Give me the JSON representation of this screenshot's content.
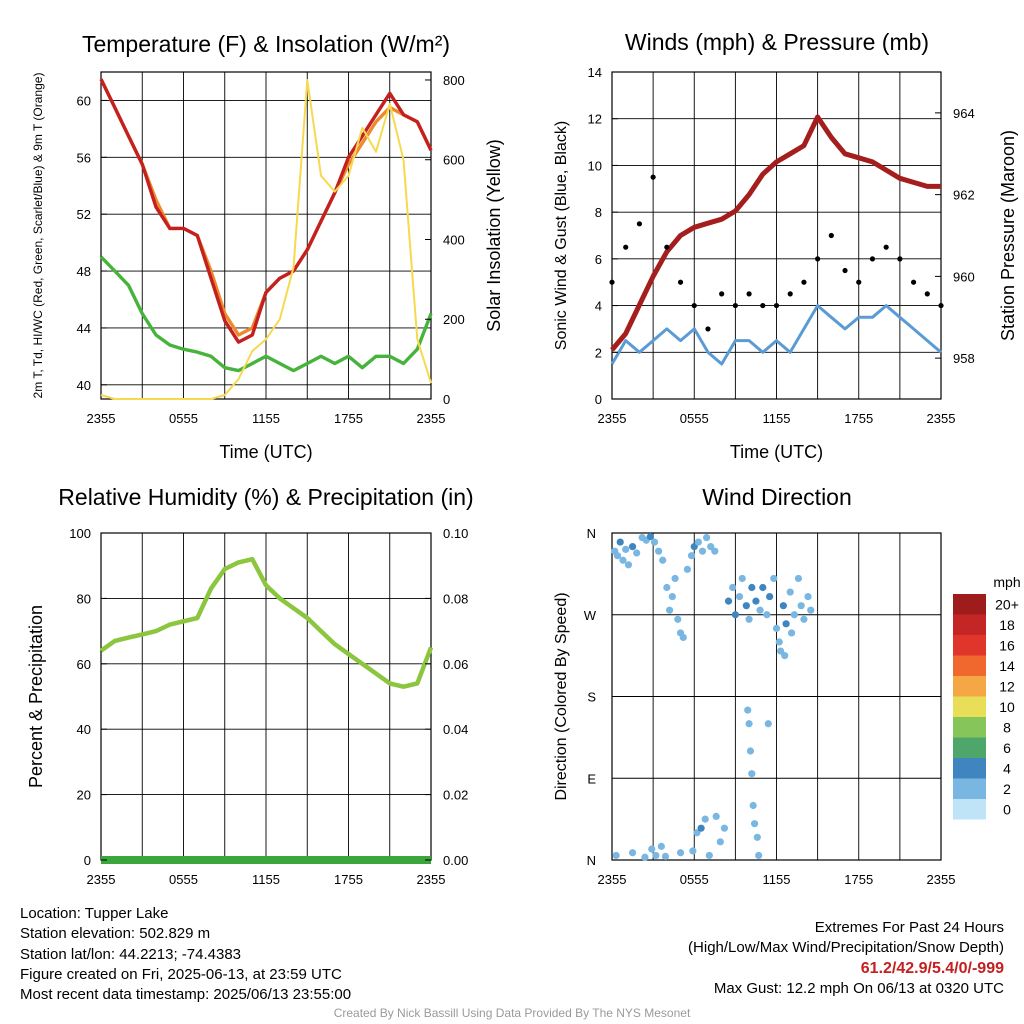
{
  "chart_data": [
    {
      "type": "line",
      "title": "Temperature (F) & Insolation (W/m²)",
      "xlabel": "Time (UTC)",
      "ylabel": "2m T, Td, HI/WC (Red, Green, Scarlet/Blue) & 9m T (Orange)",
      "y2label": "Solar Insolation (Yellow)",
      "x_ticks": [
        "2355",
        "0555",
        "1155",
        "1755",
        "2355"
      ],
      "ylim": [
        39,
        62
      ],
      "y_ticks": [
        40,
        44,
        48,
        52,
        56,
        60
      ],
      "y2lim": [
        0,
        820
      ],
      "y2_ticks": [
        0,
        200,
        400,
        600,
        800
      ],
      "x_hours": [
        0,
        1,
        2,
        3,
        4,
        5,
        6,
        7,
        8,
        9,
        10,
        11,
        12,
        13,
        14,
        15,
        16,
        17,
        18,
        19,
        20,
        21,
        22,
        23,
        24
      ],
      "series": [
        {
          "color": "#ec8a2c",
          "axis": "left",
          "values": [
            61.5,
            59.5,
            57.5,
            55.5,
            53,
            51,
            51,
            50.5,
            48,
            45,
            43.5,
            44,
            46.5,
            47.5,
            48,
            49.5,
            51.5,
            53.5,
            55.5,
            57,
            58.5,
            59.5,
            59,
            58.5,
            56.5
          ]
        },
        {
          "color": "#c4201f",
          "axis": "left",
          "values": [
            61.5,
            59.5,
            57.5,
            55.5,
            52.5,
            51,
            51,
            50.5,
            47.5,
            44.5,
            43,
            43.5,
            46.5,
            47.5,
            48,
            49.5,
            51.5,
            53.5,
            56,
            57.5,
            59,
            60.5,
            59,
            58.5,
            56.5
          ]
        },
        {
          "color": "#46b33b",
          "axis": "left",
          "values": [
            49,
            48,
            47,
            45,
            43.5,
            42.8,
            42.5,
            42.3,
            42,
            41.2,
            41,
            41.5,
            42,
            41.5,
            41,
            41.5,
            42,
            41.5,
            42,
            41.2,
            42,
            42,
            41.5,
            42.5,
            45
          ]
        },
        {
          "color": "#f7d950",
          "axis": "right",
          "values": [
            10,
            0,
            0,
            0,
            0,
            0,
            0,
            0,
            0,
            10,
            50,
            120,
            150,
            200,
            330,
            800,
            560,
            520,
            560,
            680,
            620,
            740,
            600,
            150,
            40
          ]
        }
      ]
    },
    {
      "type": "line",
      "title": "Winds (mph) & Pressure (mb)",
      "xlabel": "Time (UTC)",
      "ylabel": "Sonic Wind & Gust (Blue, Black)",
      "y2label": "Station Pressure (Maroon)",
      "x_ticks": [
        "2355",
        "0555",
        "1155",
        "1755",
        "2355"
      ],
      "ylim": [
        0,
        14
      ],
      "y_ticks": [
        0,
        2,
        4,
        6,
        8,
        10,
        12,
        14
      ],
      "y2lim": [
        957,
        965
      ],
      "y2_ticks": [
        958,
        960,
        962,
        964
      ],
      "x_hours": [
        0,
        1,
        2,
        3,
        4,
        5,
        6,
        7,
        8,
        9,
        10,
        11,
        12,
        13,
        14,
        15,
        16,
        17,
        18,
        19,
        20,
        21,
        22,
        23,
        24
      ],
      "series": [
        {
          "color": "#a51e1e",
          "axis": "right",
          "kind": "line",
          "values": [
            958.2,
            958.6,
            959.3,
            960.0,
            960.6,
            961.0,
            961.2,
            961.3,
            961.4,
            961.6,
            962.0,
            962.5,
            962.8,
            963.0,
            963.2,
            963.9,
            963.4,
            963.0,
            962.9,
            962.8,
            962.6,
            962.4,
            962.3,
            962.2,
            962.2
          ]
        },
        {
          "color": "#5b9bd5",
          "axis": "left",
          "kind": "line",
          "values": [
            1.5,
            2.5,
            2.0,
            2.5,
            3.0,
            2.5,
            3.0,
            2.0,
            1.5,
            2.5,
            2.5,
            2.0,
            2.5,
            2.0,
            3.0,
            4.0,
            3.5,
            3.0,
            3.5,
            3.5,
            4.0,
            3.5,
            3.0,
            2.5,
            2.0
          ]
        },
        {
          "color": "#000000",
          "axis": "left",
          "kind": "scatter",
          "values": [
            5.0,
            6.5,
            7.5,
            9.5,
            6.5,
            5.0,
            4.0,
            3.0,
            4.5,
            4.0,
            4.5,
            4.0,
            4.0,
            4.5,
            5.0,
            6.0,
            7.0,
            5.5,
            5.0,
            6.0,
            6.5,
            6.0,
            5.0,
            4.5,
            4.0
          ]
        }
      ],
      "max_gust_value": 12.2
    },
    {
      "type": "line",
      "title": "Relative Humidity (%) & Precipitation (in)",
      "ylabel": "Percent & Precipitation",
      "x_ticks": [
        "2355",
        "0555",
        "1155",
        "1755",
        "2355"
      ],
      "ylim": [
        0,
        100
      ],
      "y_ticks": [
        0,
        20,
        40,
        60,
        80,
        100
      ],
      "y2lim": [
        0,
        0.1
      ],
      "y2_ticks": [
        "0.00",
        "0.02",
        "0.04",
        "0.06",
        "0.08",
        "0.10"
      ],
      "x_hours": [
        0,
        1,
        2,
        3,
        4,
        5,
        6,
        7,
        8,
        9,
        10,
        11,
        12,
        13,
        14,
        15,
        16,
        17,
        18,
        19,
        20,
        21,
        22,
        23,
        24
      ],
      "series": [
        {
          "color": "#8cc63f",
          "axis": "left",
          "values": [
            64,
            67,
            68,
            69,
            70,
            72,
            73,
            74,
            83,
            89,
            91,
            92,
            84,
            80,
            77,
            74,
            70,
            66,
            63,
            60,
            57,
            54,
            53,
            54,
            65
          ]
        },
        {
          "color": "#3ba63b",
          "axis": "right",
          "values": [
            0,
            0,
            0,
            0,
            0,
            0,
            0,
            0,
            0,
            0,
            0,
            0,
            0,
            0,
            0,
            0,
            0,
            0,
            0,
            0,
            0,
            0,
            0,
            0,
            0
          ]
        }
      ]
    },
    {
      "type": "scatter",
      "title": "Wind Direction",
      "ylabel": "Direction (Colored By Speed)",
      "x_ticks": [
        "2355",
        "0555",
        "1155",
        "1755",
        "2355"
      ],
      "y_ticks": [
        "N",
        "E",
        "S",
        "W",
        "N"
      ],
      "ylim": [
        0,
        360
      ],
      "legend_title": "mph",
      "legend_labels": [
        "20+",
        "18",
        "16",
        "14",
        "12",
        "10",
        "8",
        "6",
        "4",
        "2",
        "0"
      ],
      "legend_colors": [
        "#9e1c1c",
        "#c42626",
        "#e0352b",
        "#f0682e",
        "#f5a745",
        "#e8de57",
        "#86c55a",
        "#4ea66a",
        "#3f86c0",
        "#79b7e2",
        "#bfe3f7"
      ],
      "points": [
        {
          "x": 0.2,
          "y": 340,
          "s": 2
        },
        {
          "x": 0.4,
          "y": 335,
          "s": 2
        },
        {
          "x": 0.6,
          "y": 350,
          "s": 3
        },
        {
          "x": 0.8,
          "y": 330,
          "s": 2
        },
        {
          "x": 1.0,
          "y": 342,
          "s": 2
        },
        {
          "x": 1.2,
          "y": 325,
          "s": 2
        },
        {
          "x": 1.5,
          "y": 345,
          "s": 3
        },
        {
          "x": 1.8,
          "y": 338,
          "s": 2
        },
        {
          "x": 2.2,
          "y": 355,
          "s": 1
        },
        {
          "x": 2.5,
          "y": 352,
          "s": 2
        },
        {
          "x": 2.8,
          "y": 356,
          "s": 3
        },
        {
          "x": 3.1,
          "y": 350,
          "s": 2
        },
        {
          "x": 3.4,
          "y": 340,
          "s": 1
        },
        {
          "x": 3.7,
          "y": 330,
          "s": 1
        },
        {
          "x": 4.0,
          "y": 300,
          "s": 2
        },
        {
          "x": 4.2,
          "y": 275,
          "s": 2
        },
        {
          "x": 4.4,
          "y": 290,
          "s": 1
        },
        {
          "x": 4.6,
          "y": 310,
          "s": 2
        },
        {
          "x": 4.8,
          "y": 265,
          "s": 1
        },
        {
          "x": 5.0,
          "y": 250,
          "s": 1
        },
        {
          "x": 5.2,
          "y": 245,
          "s": 1
        },
        {
          "x": 5.5,
          "y": 320,
          "s": 2
        },
        {
          "x": 5.8,
          "y": 335,
          "s": 2
        },
        {
          "x": 6.0,
          "y": 345,
          "s": 3
        },
        {
          "x": 6.3,
          "y": 350,
          "s": 2
        },
        {
          "x": 6.6,
          "y": 340,
          "s": 2
        },
        {
          "x": 6.9,
          "y": 355,
          "s": 1
        },
        {
          "x": 7.2,
          "y": 345,
          "s": 1
        },
        {
          "x": 7.5,
          "y": 340,
          "s": 2
        },
        {
          "x": 0.3,
          "y": 5,
          "s": 2
        },
        {
          "x": 1.5,
          "y": 8,
          "s": 1
        },
        {
          "x": 2.4,
          "y": 3,
          "s": 2
        },
        {
          "x": 2.9,
          "y": 12,
          "s": 2
        },
        {
          "x": 3.2,
          "y": 5,
          "s": 1
        },
        {
          "x": 3.6,
          "y": 15,
          "s": 1
        },
        {
          "x": 3.9,
          "y": 4,
          "s": 2
        },
        {
          "x": 5.0,
          "y": 8,
          "s": 1
        },
        {
          "x": 5.9,
          "y": 10,
          "s": 2
        },
        {
          "x": 6.2,
          "y": 30,
          "s": 2
        },
        {
          "x": 6.5,
          "y": 35,
          "s": 3
        },
        {
          "x": 6.8,
          "y": 45,
          "s": 2
        },
        {
          "x": 7.1,
          "y": 5,
          "s": 2
        },
        {
          "x": 7.6,
          "y": 48,
          "s": 1
        },
        {
          "x": 7.9,
          "y": 20,
          "s": 2
        },
        {
          "x": 8.2,
          "y": 35,
          "s": 1
        },
        {
          "x": 8.5,
          "y": 285,
          "s": 3
        },
        {
          "x": 8.8,
          "y": 300,
          "s": 2
        },
        {
          "x": 9.0,
          "y": 270,
          "s": 3
        },
        {
          "x": 9.3,
          "y": 290,
          "s": 2
        },
        {
          "x": 9.5,
          "y": 310,
          "s": 2
        },
        {
          "x": 9.8,
          "y": 280,
          "s": 3
        },
        {
          "x": 10.0,
          "y": 265,
          "s": 2
        },
        {
          "x": 10.2,
          "y": 300,
          "s": 4
        },
        {
          "x": 10.5,
          "y": 285,
          "s": 3
        },
        {
          "x": 10.8,
          "y": 275,
          "s": 2
        },
        {
          "x": 9.9,
          "y": 165,
          "s": 2
        },
        {
          "x": 10.0,
          "y": 150,
          "s": 2
        },
        {
          "x": 10.1,
          "y": 120,
          "s": 2
        },
        {
          "x": 10.2,
          "y": 95,
          "s": 2
        },
        {
          "x": 10.3,
          "y": 60,
          "s": 1
        },
        {
          "x": 10.4,
          "y": 40,
          "s": 1
        },
        {
          "x": 10.6,
          "y": 25,
          "s": 2
        },
        {
          "x": 10.7,
          "y": 5,
          "s": 2
        },
        {
          "x": 11.0,
          "y": 300,
          "s": 3
        },
        {
          "x": 11.3,
          "y": 270,
          "s": 2
        },
        {
          "x": 11.5,
          "y": 290,
          "s": 3
        },
        {
          "x": 11.8,
          "y": 310,
          "s": 2
        },
        {
          "x": 12.0,
          "y": 255,
          "s": 2
        },
        {
          "x": 12.2,
          "y": 240,
          "s": 2
        },
        {
          "x": 12.5,
          "y": 280,
          "s": 3
        },
        {
          "x": 12.7,
          "y": 260,
          "s": 3
        },
        {
          "x": 13.0,
          "y": 295,
          "s": 2
        },
        {
          "x": 13.3,
          "y": 270,
          "s": 2
        },
        {
          "x": 13.6,
          "y": 310,
          "s": 2
        },
        {
          "x": 13.8,
          "y": 280,
          "s": 2
        },
        {
          "x": 14.0,
          "y": 265,
          "s": 2
        },
        {
          "x": 14.3,
          "y": 290,
          "s": 2
        },
        {
          "x": 14.5,
          "y": 275,
          "s": 2
        },
        {
          "x": 11.4,
          "y": 150,
          "s": 2
        },
        {
          "x": 12.3,
          "y": 230,
          "s": 2
        },
        {
          "x": 12.6,
          "y": 225,
          "s": 2
        },
        {
          "x": 13.1,
          "y": 250,
          "s": 2
        }
      ]
    }
  ],
  "info": {
    "location": "Location: Tupper Lake",
    "elevation": "Station elevation: 502.829 m",
    "latlon": "Station lat/lon: 44.2213; -74.4383",
    "created": "Figure created on Fri, 2025-06-13, at 23:59 UTC",
    "recent": "Most recent data timestamp: 2025/06/13 23:55:00"
  },
  "extremes": {
    "title": "Extremes For Past 24 Hours",
    "subtitle": "(High/Low/Max Wind/Precipitation/Snow Depth)",
    "values": "61.2/42.9/5.4/0/-999",
    "max_gust": "Max Gust: 12.2 mph On 06/13 at 0320 UTC"
  },
  "credit": "Created By Nick Bassill Using Data Provided By The NYS Mesonet"
}
